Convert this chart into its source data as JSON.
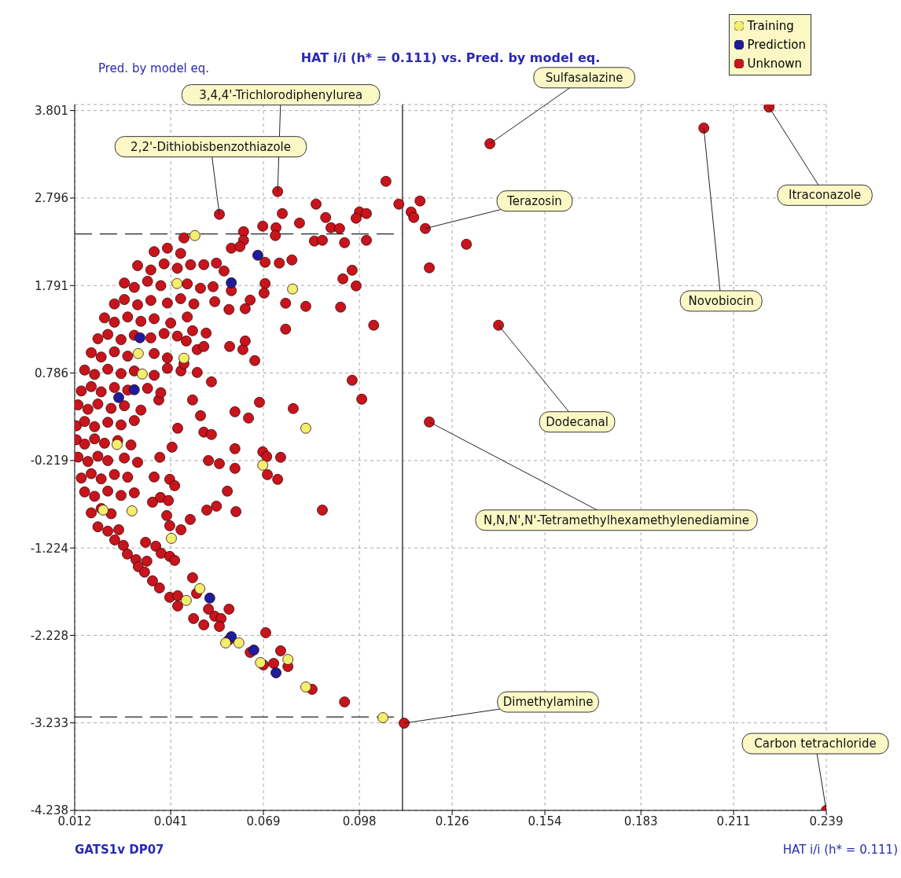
{
  "chart_data": {
    "type": "scatter",
    "title": "HAT i/i (h* = 0.111) vs. Pred. by model eq.",
    "xlabel": "HAT i/i (h* = 0.111)",
    "ylabel": "Pred. by model eq.",
    "xlim": [
      0.012,
      0.239
    ],
    "ylim": [
      -4.238,
      3.87
    ],
    "xticks": [
      0.012,
      0.041,
      0.069,
      0.098,
      0.126,
      0.154,
      0.183,
      0.211,
      0.239
    ],
    "yticks": [
      3.801,
      2.796,
      1.791,
      0.786,
      -0.219,
      -1.224,
      -2.228,
      -3.233,
      -4.238
    ],
    "grid": true,
    "legend": "top right",
    "marker": "circle",
    "ref_lines": [
      {
        "axis": "x",
        "value": 0.111,
        "line_style": "solid"
      },
      {
        "axis": "y",
        "value": 2.383,
        "line_style": "dashed"
      },
      {
        "axis": "y",
        "value": -3.164,
        "line_style": "dashed"
      }
    ],
    "annotations": [
      {
        "text": "3,4,4'-Trichlorodiphenylurea",
        "x": 0.0733,
        "y": 2.871
      },
      {
        "text": "2,2'-Dithiobisbenzothiazole",
        "x": 0.0557,
        "y": 2.609
      },
      {
        "text": "Sulfasalazine",
        "x": 0.1374,
        "y": 3.42
      },
      {
        "text": "Itraconazole",
        "x": 0.2217,
        "y": 3.84
      },
      {
        "text": "Novobiocin",
        "x": 0.202,
        "y": 3.6
      },
      {
        "text": "Terazosin",
        "x": 0.1179,
        "y": 2.446
      },
      {
        "text": "Dodecanal",
        "x": 0.14,
        "y": 1.335
      },
      {
        "text": "N,N,N',N'-Tetramethylhexamethylenediamine",
        "x": 0.1191,
        "y": 0.224
      },
      {
        "text": "Dimethylamine",
        "x": 0.1115,
        "y": -3.236
      },
      {
        "text": "Carbon tetrachloride",
        "x": 0.239,
        "y": -4.238
      },
      "GATS1v DP07"
    ],
    "series": [
      {
        "name": "Training",
        "color": "#f2ee6e",
        "x": [
          0.0483,
          0.0429,
          0.0778,
          0.0312,
          0.0324,
          0.045,
          0.0818,
          0.0248,
          0.0688,
          0.0206,
          0.0293,
          0.0412,
          0.0498,
          0.0457,
          0.0616,
          0.0576,
          0.0681,
          0.0764,
          0.0818,
          0.1051
        ],
        "values": [
          2.365,
          1.814,
          1.751,
          1.01,
          0.775,
          0.956,
          0.152,
          -0.035,
          -0.273,
          -0.788,
          -0.797,
          -1.113,
          -1.691,
          -1.826,
          -2.314,
          -2.314,
          -2.54,
          -2.504,
          -2.82,
          -3.173
        ]
      },
      {
        "name": "Prediction",
        "color": "#1c1c9c",
        "x": [
          0.0528,
          0.0728,
          0.0661,
          0.0593,
          0.0673,
          0.0593,
          0.0317,
          0.03,
          0.0253
        ],
        "values": [
          -1.799,
          -2.658,
          -2.396,
          -2.242,
          2.139,
          1.823,
          1.191,
          0.594,
          0.504
        ]
      },
      {
        "name": "Unknown",
        "color": "#c8141c",
        "x": [
          0.0733,
          0.0557,
          0.1374,
          0.2217,
          0.202,
          0.1179,
          0.14,
          0.1191,
          0.1115,
          0.239,
          0.106,
          0.0849,
          0.1099,
          0.1163,
          0.1136,
          0.1144,
          0.1303,
          0.1191,
          0.0747,
          0.0799,
          0.0878,
          0.0894,
          0.092,
          0.098,
          0.1001,
          0.097,
          0.0844,
          0.0868,
          0.0935,
          0.1001,
          0.0958,
          0.093,
          0.097,
          0.0923,
          0.1023,
          0.0958,
          0.0987,
          0.0757,
          0.0818,
          0.0757,
          0.078,
          0.0678,
          0.0604,
          0.0645,
          0.0664,
          0.0588,
          0.0628,
          0.0635,
          0.0695,
          0.0692,
          0.065,
          0.0635,
          0.0776,
          0.0738,
          0.0695,
          0.0728,
          0.0726,
          0.0688,
          0.063,
          0.063,
          0.0593,
          0.0619,
          0.0548,
          0.051,
          0.0571,
          0.045,
          0.0543,
          0.0538,
          0.0586,
          0.0593,
          0.0476,
          0.0517,
          0.0457,
          0.049,
          0.051,
          0.049,
          0.0533,
          0.0441,
          0.045,
          0.0476,
          0.05,
          0.0431,
          0.051,
          0.0533,
          0.0604,
          0.0688,
          0.07,
          0.0742,
          0.0604,
          0.0702,
          0.0733,
          0.0524,
          0.0557,
          0.0414,
          0.0377,
          0.0581,
          0.0374,
          0.0519,
          0.0548,
          0.0607,
          0.0868,
          0.0398,
          0.0407,
          0.0441,
          0.0469,
          0.036,
          0.0407,
          0.0422,
          0.0355,
          0.0379,
          0.0403,
          0.0334,
          0.0365,
          0.0381,
          0.0407,
          0.0422,
          0.0253,
          0.0241,
          0.0267,
          0.0279,
          0.0305,
          0.0338,
          0.0312,
          0.0331,
          0.0355,
          0.0376,
          0.0407,
          0.0431,
          0.0431,
          0.0476,
          0.0488,
          0.0479,
          0.051,
          0.0524,
          0.0543,
          0.0562,
          0.0557,
          0.0586,
          0.0586,
          0.065,
          0.0697,
          0.0742,
          0.0721,
          0.069,
          0.0764,
          0.0837,
          0.0935,
          0.036,
          0.04,
          0.044,
          0.031,
          0.035,
          0.039,
          0.043,
          0.047,
          0.027,
          0.03,
          0.034,
          0.038,
          0.046,
          0.05,
          0.024,
          0.027,
          0.031,
          0.035,
          0.04,
          0.044,
          0.048,
          0.021,
          0.024,
          0.028,
          0.032,
          0.036,
          0.041,
          0.046,
          0.019,
          0.022,
          0.026,
          0.03,
          0.035,
          0.039,
          0.043,
          0.017,
          0.02,
          0.024,
          0.028,
          0.036,
          0.04,
          0.015,
          0.018,
          0.022,
          0.026,
          0.03,
          0.036,
          0.04,
          0.014,
          0.017,
          0.02,
          0.024,
          0.028,
          0.034,
          0.038,
          0.013,
          0.016,
          0.019,
          0.023,
          0.027,
          0.032,
          0.0125,
          0.015,
          0.018,
          0.022,
          0.026,
          0.03,
          0.0125,
          0.015,
          0.018,
          0.021,
          0.025,
          0.029,
          0.013,
          0.016,
          0.019,
          0.022,
          0.027,
          0.031,
          0.014,
          0.017,
          0.02,
          0.024,
          0.028,
          0.015,
          0.018,
          0.022,
          0.026,
          0.03,
          0.017,
          0.02,
          0.023,
          0.019,
          0.022
        ],
        "values": [
          2.871,
          2.609,
          3.42,
          3.84,
          3.6,
          2.446,
          1.335,
          0.224,
          -3.236,
          -4.238,
          2.988,
          2.726,
          2.726,
          2.762,
          2.636,
          2.573,
          2.265,
          1.995,
          2.618,
          2.509,
          2.573,
          2.455,
          2.446,
          2.636,
          2.618,
          2.564,
          2.302,
          2.311,
          2.283,
          2.311,
          1.967,
          1.868,
          1.787,
          1.543,
          1.335,
          0.703,
          0.486,
          1.588,
          1.552,
          1.29,
          0.378,
          0.45,
          0.341,
          0.269,
          0.929,
          1.091,
          1.055,
          1.154,
          1.814,
          1.705,
          1.624,
          1.525,
          2.085,
          2.049,
          2.058,
          2.455,
          2.365,
          2.473,
          2.41,
          2.31,
          2.22,
          2.238,
          2.049,
          2.031,
          1.958,
          2.338,
          1.606,
          1.778,
          1.516,
          1.732,
          1.272,
          1.245,
          1.154,
          1.055,
          1.091,
          0.793,
          0.685,
          0.811,
          0.893,
          0.477,
          0.296,
          0.152,
          0.107,
          0.08,
          -0.083,
          -0.119,
          -0.173,
          -0.182,
          -0.309,
          -0.381,
          -0.435,
          -0.219,
          -0.255,
          -0.065,
          -0.182,
          -0.571,
          0.477,
          -0.788,
          -0.743,
          -0.806,
          -0.788,
          -0.851,
          -0.968,
          -1.014,
          -0.896,
          -0.408,
          -0.435,
          -0.508,
          -0.697,
          -0.643,
          -0.679,
          -1.158,
          -1.203,
          -1.284,
          -1.32,
          -1.366,
          -1.014,
          -1.131,
          -1.194,
          -1.293,
          -1.357,
          -1.375,
          -1.438,
          -1.501,
          -1.601,
          -1.682,
          -1.79,
          -1.772,
          -1.89,
          -1.565,
          -1.745,
          -2.034,
          -2.107,
          -1.926,
          -2.007,
          -2.034,
          -2.125,
          -1.926,
          -2.278,
          -2.423,
          -2.197,
          -2.405,
          -2.549,
          -2.567,
          -2.585,
          -2.847,
          -2.992,
          2.18,
          2.22,
          2.16,
          2.02,
          1.97,
          2.04,
          1.99,
          2.03,
          1.82,
          1.77,
          1.84,
          1.79,
          1.81,
          1.76,
          1.58,
          1.63,
          1.57,
          1.62,
          1.59,
          1.64,
          1.58,
          1.42,
          1.37,
          1.43,
          1.38,
          1.41,
          1.36,
          1.43,
          1.18,
          1.23,
          1.17,
          1.22,
          1.19,
          1.24,
          1.21,
          1.02,
          0.97,
          1.03,
          0.98,
          1.01,
          0.96,
          0.82,
          0.77,
          0.83,
          0.78,
          0.81,
          0.76,
          0.84,
          0.58,
          0.63,
          0.57,
          0.62,
          0.59,
          0.61,
          0.56,
          0.42,
          0.37,
          0.43,
          0.38,
          0.41,
          0.36,
          0.18,
          0.23,
          0.17,
          0.22,
          0.19,
          0.24,
          0.02,
          -0.03,
          0.03,
          -0.02,
          0.01,
          -0.04,
          -0.18,
          -0.23,
          -0.17,
          -0.22,
          -0.19,
          -0.24,
          -0.42,
          -0.37,
          -0.43,
          -0.38,
          -0.41,
          -0.58,
          -0.63,
          -0.57,
          -0.62,
          -0.59,
          -0.82,
          -0.77,
          -0.83,
          -0.98,
          -1.03
        ]
      }
    ]
  }
}
